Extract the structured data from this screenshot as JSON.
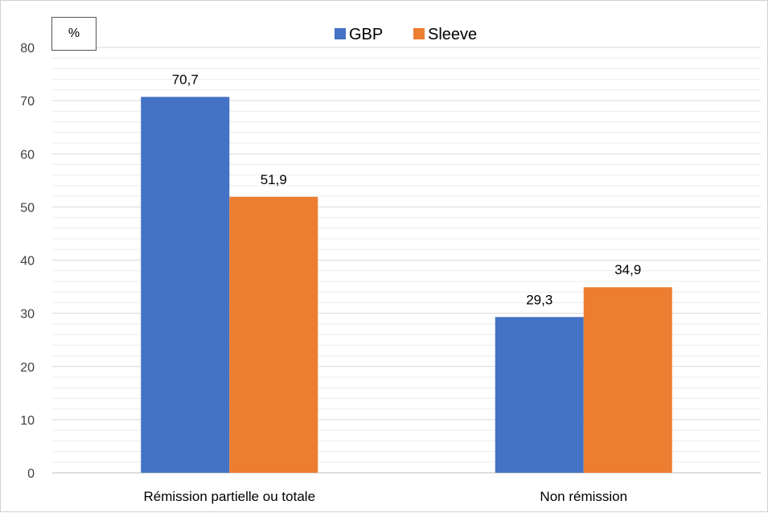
{
  "chart_data": {
    "type": "bar",
    "unit_label": "%",
    "categories": [
      "Rémission partielle ou totale",
      "Non rémission"
    ],
    "series": [
      {
        "name": "GBP",
        "color": "#4472C4",
        "values": [
          70.7,
          29.3
        ],
        "labels": [
          "70,7",
          "29,3"
        ]
      },
      {
        "name": "Sleeve",
        "color": "#ED7D31",
        "values": [
          51.9,
          34.9
        ],
        "labels": [
          "51,9",
          "34,9"
        ]
      }
    ],
    "yticks": [
      "0",
      "10",
      "20",
      "30",
      "40",
      "50",
      "60",
      "70",
      "80"
    ],
    "ylim": [
      0,
      80
    ],
    "grid": true,
    "minor_gridlines": true,
    "legend_position": "top"
  }
}
